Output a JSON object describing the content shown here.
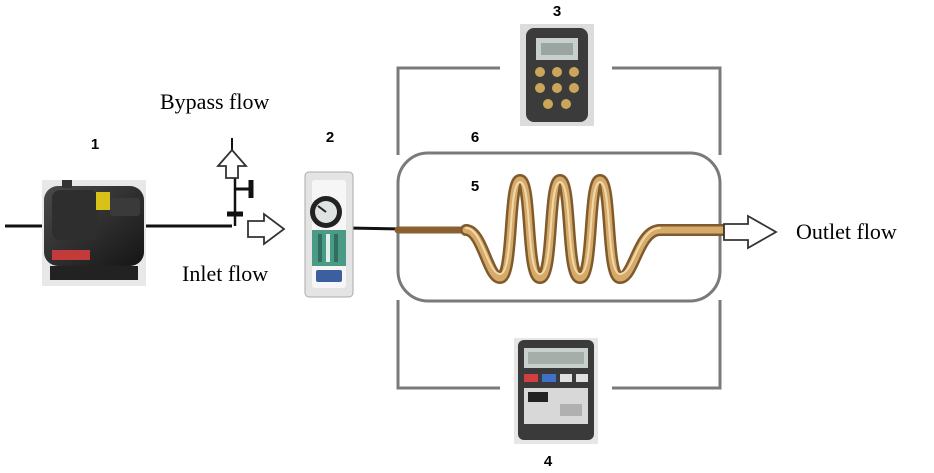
{
  "labels": {
    "bypass": "Bypass flow",
    "inlet": "Inlet flow",
    "outlet": "Outlet flow"
  },
  "numbers": {
    "n1": "1",
    "n2": "2",
    "n3": "3",
    "n4": "4",
    "n5": "5",
    "n6": "6"
  },
  "colors": {
    "pipe": "#111111",
    "frame": "#7a7a7a",
    "coil": "#c99a5a",
    "coil_dark": "#8a6030",
    "compressor": "#2a2a2a",
    "flowmeter_green": "#3a9a7a",
    "display": "#c8d0cc"
  },
  "icons": {
    "compressor": "compressor-icon",
    "flowmeter": "rotameter-icon",
    "thermometer": "thermometer-icon",
    "power_meter": "power-meter-icon",
    "coil": "coil-icon",
    "valve": "valve-icon",
    "arrow": "flow-arrow-icon"
  }
}
